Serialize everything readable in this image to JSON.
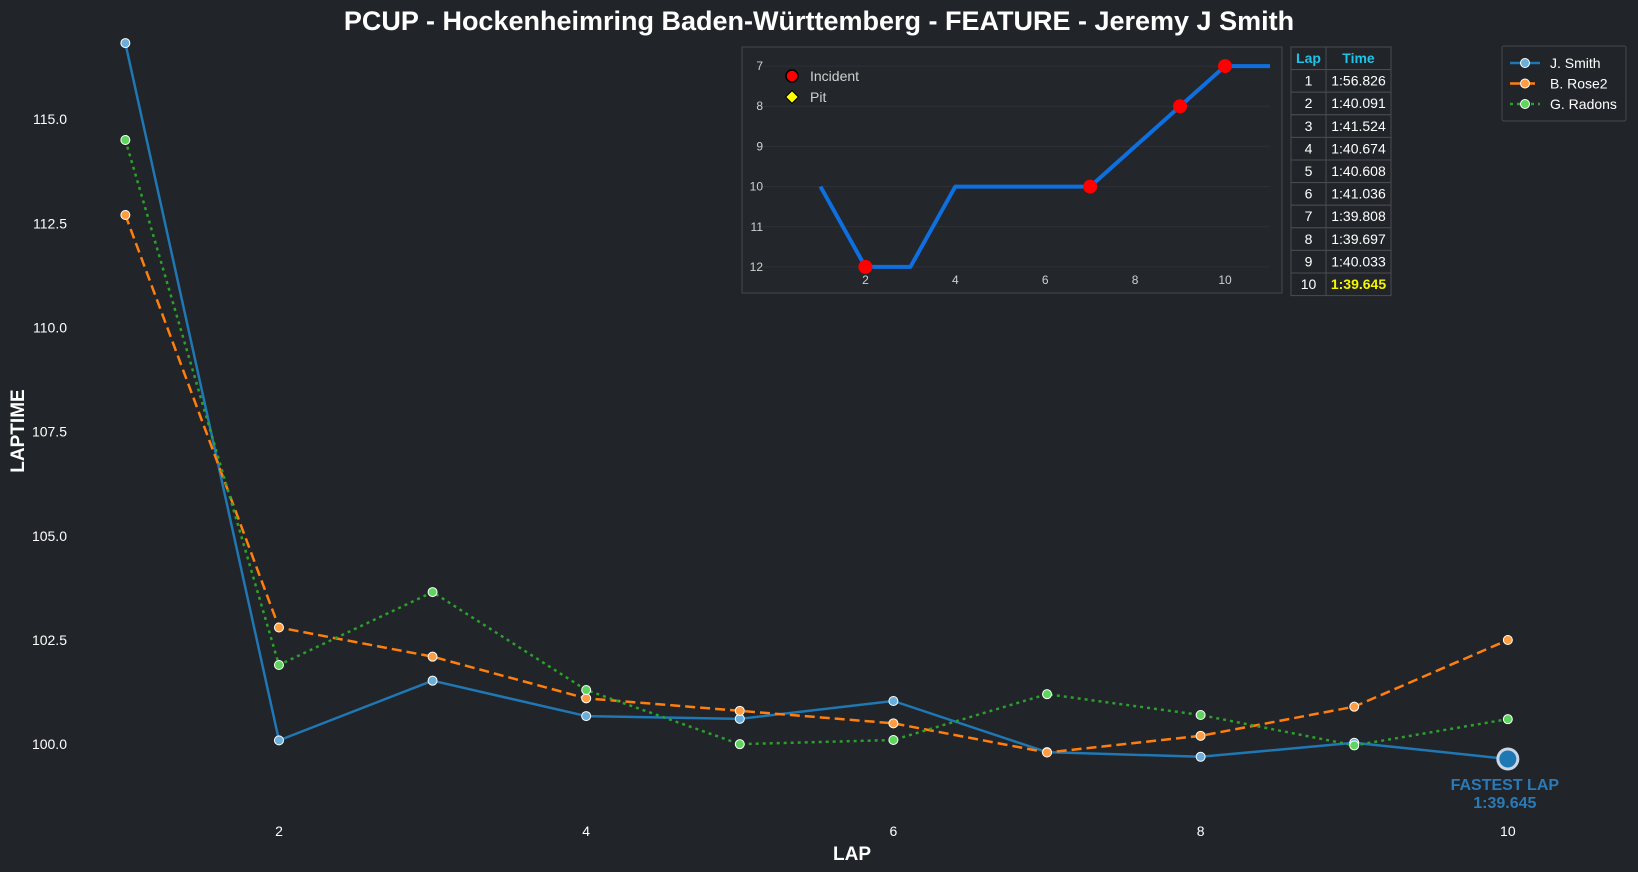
{
  "chart_data": {
    "type": "line",
    "title": "PCUP - Hockenheimring Baden-Württemberg - FEATURE - Jeremy J Smith",
    "xlabel": "LAP",
    "ylabel": "LAPTIME",
    "xlim": [
      0.9,
      10.6
    ],
    "ylim": [
      98.3,
      116.9
    ],
    "xticks": [
      2,
      4,
      6,
      8,
      10
    ],
    "yticks": [
      100.0,
      102.5,
      105.0,
      107.5,
      110.0,
      112.5,
      115.0
    ],
    "grid": false,
    "legend": "top-right",
    "x": [
      1,
      2,
      3,
      4,
      5,
      6,
      7,
      8,
      9,
      10
    ],
    "series": [
      {
        "name": "J. Smith",
        "color": "#1f77b4",
        "marker_fill": "#6aaedc",
        "dash": "solid",
        "values": [
          116.826,
          100.091,
          101.524,
          100.674,
          100.608,
          101.036,
          99.808,
          99.697,
          100.033,
          99.645
        ]
      },
      {
        "name": "B. Rose2",
        "color": "#ff7f0e",
        "marker_fill": "#ff9d40",
        "dash": "dashed",
        "values": [
          112.7,
          102.8,
          102.1,
          101.1,
          100.8,
          100.5,
          99.8,
          100.2,
          100.9,
          102.5
        ]
      },
      {
        "name": "G. Radons",
        "color": "#2ca02c",
        "marker_fill": "#5ed65e",
        "dash": "dotted",
        "values": [
          114.5,
          101.9,
          103.65,
          101.3,
          100.0,
          100.1,
          101.2,
          100.7,
          99.97,
          100.6
        ]
      }
    ],
    "fastest_lap": {
      "label": "FASTEST LAP",
      "time": "1:39.645",
      "lap": 10,
      "value": 99.645
    },
    "inset": {
      "type": "line",
      "color": "#0e6fe0",
      "x": [
        1,
        2,
        3,
        4,
        5,
        6,
        7,
        8,
        9,
        10,
        11
      ],
      "values": [
        10,
        12,
        12,
        10,
        10,
        10,
        10,
        9,
        8,
        7,
        7
      ],
      "xticks": [
        2,
        4,
        6,
        8,
        10
      ],
      "yticks": [
        7,
        8,
        9,
        10,
        11,
        12
      ],
      "xlim": [
        0.1,
        11.0
      ],
      "ylim": [
        12.45,
        6.6
      ],
      "incidents": [
        {
          "x": 2,
          "y": 12
        },
        {
          "x": 7,
          "y": 10
        },
        {
          "x": 9,
          "y": 8
        },
        {
          "x": 10,
          "y": 7
        }
      ],
      "legend": [
        {
          "label": "Incident",
          "marker": "circle",
          "color": "#ff0000"
        },
        {
          "label": "Pit",
          "marker": "diamond",
          "color": "#ffff00"
        }
      ]
    },
    "table": {
      "headers": [
        "Lap",
        "Time"
      ],
      "rows": [
        [
          "1",
          "1:56.826"
        ],
        [
          "2",
          "1:40.091"
        ],
        [
          "3",
          "1:41.524"
        ],
        [
          "4",
          "1:40.674"
        ],
        [
          "5",
          "1:40.608"
        ],
        [
          "6",
          "1:41.036"
        ],
        [
          "7",
          "1:39.808"
        ],
        [
          "8",
          "1:39.697"
        ],
        [
          "9",
          "1:40.033"
        ],
        [
          "10",
          "1:39.645"
        ]
      ],
      "best_row": 9
    }
  }
}
